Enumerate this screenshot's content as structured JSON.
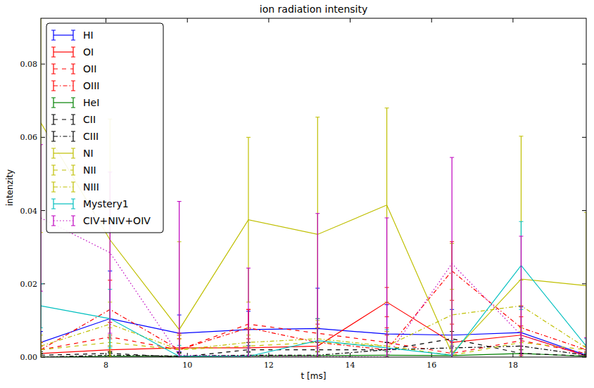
{
  "chart_data": {
    "type": "line",
    "title": "ion radiation intensity",
    "x_label": "t [ms]",
    "y_label": "intenzity",
    "x": [
      6.4,
      8.1,
      9.8,
      11.5,
      13.2,
      14.9,
      16.5,
      18.2,
      19.8
    ],
    "xlim": [
      6.4,
      19.8
    ],
    "xticks": [
      8,
      10,
      12,
      14,
      16,
      18
    ],
    "ylim": [
      0,
      0.0925
    ],
    "yticks": [
      {
        "value": 0,
        "label": "0.00"
      },
      {
        "value": 0.02,
        "label": "0.02"
      },
      {
        "value": 0.04,
        "label": "0.04"
      },
      {
        "value": 0.06,
        "label": "0.06"
      },
      {
        "value": 0.08,
        "label": "0.08"
      }
    ],
    "grid": false,
    "legend": "upper left",
    "series": [
      {
        "name": "HI",
        "color": "#0000ff",
        "line_style": "solid",
        "values": [
          0.004,
          0.0105,
          0.0065,
          0.0075,
          0.0078,
          0.0063,
          0.006,
          0.0067,
          0.0005
        ],
        "errors": [
          0.003,
          0.013,
          0.005,
          0.005,
          0.011,
          0.008,
          0.007,
          0.007,
          0.001
        ]
      },
      {
        "name": "OI",
        "color": "#ff0000",
        "line_style": "solid",
        "values": [
          0.001,
          0.002,
          0.0025,
          0.0025,
          0.003,
          0.015,
          0.004,
          0.006,
          0.0003
        ],
        "errors": [
          0.002,
          0.004,
          0.004,
          0.005,
          0.005,
          0.004,
          0.005,
          0.005,
          0.001
        ]
      },
      {
        "name": "OII",
        "color": "#ff0000",
        "line_style": "dashed",
        "values": [
          0.002,
          0.0055,
          0.002,
          0.009,
          0.0065,
          0.004,
          0.001,
          0.0045,
          0.001
        ],
        "errors": [
          0.002,
          0.004,
          0.003,
          0.004,
          0.004,
          0.004,
          0.003,
          0.004,
          0.001
        ]
      },
      {
        "name": "OIII",
        "color": "#ff0000",
        "line_style": "dashdot",
        "values": [
          0.002,
          0.013,
          0.002,
          0.008,
          0.004,
          0.002,
          0.0235,
          0.008,
          0.002
        ],
        "errors": [
          0.002,
          0.008,
          0.004,
          0.005,
          0.005,
          0.004,
          0.008,
          0.006,
          0.001
        ]
      },
      {
        "name": "HeI",
        "color": "#008000",
        "line_style": "solid",
        "values": [
          0.0,
          0.0002,
          0.0002,
          0.0003,
          0.0004,
          0.0005,
          0.0004,
          0.001,
          0.0002
        ],
        "errors": [
          0.001,
          0.001,
          0.001,
          0.001,
          0.001,
          0.001,
          0.001,
          0.001,
          0.0005
        ]
      },
      {
        "name": "CII",
        "color": "#000000",
        "line_style": "dashed",
        "values": [
          0.0005,
          0.001,
          0.0,
          0.002,
          0.002,
          0.002,
          0.005,
          0.001,
          0.0003
        ],
        "errors": [
          0.001,
          0.002,
          0.001,
          0.002,
          0.002,
          0.002,
          0.002,
          0.002,
          0.0005
        ]
      },
      {
        "name": "CIII",
        "color": "#000000",
        "line_style": "dashdot",
        "values": [
          0.0,
          0.0005,
          0.0003,
          0.0005,
          0.0005,
          0.002,
          0.0025,
          0.003,
          0.0005
        ],
        "errors": [
          0.001,
          0.001,
          0.001,
          0.001,
          0.001,
          0.002,
          0.002,
          0.002,
          0.0005
        ]
      },
      {
        "name": "NI",
        "color": "#bfbf00",
        "line_style": "solid",
        "values": [
          0.064,
          0.032,
          0.0075,
          0.0375,
          0.0335,
          0.0415,
          0.001,
          0.0213,
          0.0195
        ],
        "errors": [
          0.03,
          0.033,
          0.024,
          0.0225,
          0.032,
          0.0265,
          0.03,
          0.039,
          0.02
        ]
      },
      {
        "name": "NII",
        "color": "#bfbf00",
        "line_style": "dashed",
        "values": [
          0.002,
          0.004,
          0.002,
          0.003,
          0.004,
          0.003,
          0.0005,
          0.004,
          0.002
        ],
        "errors": [
          0.002,
          0.004,
          0.003,
          0.003,
          0.004,
          0.004,
          0.003,
          0.004,
          0.001
        ]
      },
      {
        "name": "NIII",
        "color": "#bfbf00",
        "line_style": "dashdot",
        "values": [
          0.003,
          0.009,
          0.002,
          0.004,
          0.005,
          0.003,
          0.0115,
          0.014,
          0.0025
        ],
        "errors": [
          0.003,
          0.006,
          0.004,
          0.004,
          0.005,
          0.004,
          0.007,
          0.007,
          0.001
        ]
      },
      {
        "name": "Mystery1",
        "color": "#00bfbf",
        "line_style": "solid",
        "values": [
          0.014,
          0.0105,
          0.0002,
          0.0002,
          0.0045,
          0.0025,
          0.0005,
          0.025,
          0.003
        ],
        "errors": [
          0.006,
          0.008,
          0.003,
          0.003,
          0.006,
          0.005,
          0.004,
          0.012,
          0.002
        ]
      },
      {
        "name": "CIV+NIV+OIV",
        "color": "#bf00bf",
        "line_style": "dotted",
        "values": [
          0.038,
          0.0285,
          0.0005,
          0.0003,
          0.0002,
          0.0,
          0.0255,
          0.006,
          0.0003
        ],
        "errors": [
          0.02,
          0.022,
          0.042,
          0.024,
          0.039,
          0.038,
          0.029,
          0.027,
          0.005
        ]
      }
    ]
  }
}
